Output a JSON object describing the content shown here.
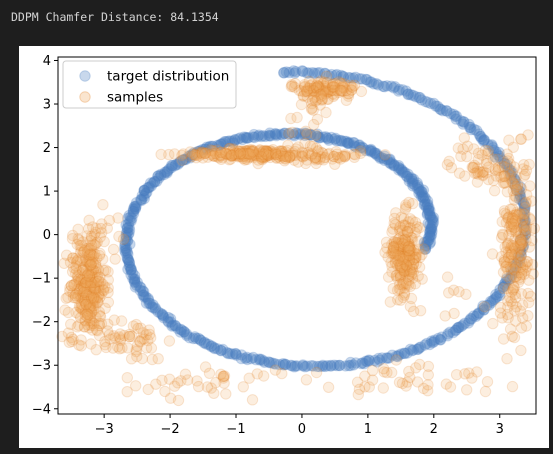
{
  "console": {
    "output_text": "DDPM Chamfer Distance: 84.1354"
  },
  "colors": {
    "background": "#1e1e1e",
    "console_text": "#d4d4d4",
    "panel": "#ffffff",
    "target": "#4a7fbf",
    "samples": "#f0a860",
    "samples_dense": "#e07a1a"
  },
  "chart_data": {
    "type": "scatter",
    "xlim": [
      -3.7,
      3.55
    ],
    "ylim": [
      -4.12,
      4.08
    ],
    "xticks": [
      -3,
      -2,
      -1,
      0,
      1,
      2,
      3
    ],
    "yticks": [
      -4,
      -3,
      -2,
      -1,
      0,
      1,
      2,
      3,
      4
    ],
    "xtick_labels": [
      "−3",
      "−2",
      "−1",
      "0",
      "1",
      "2",
      "3"
    ],
    "ytick_labels": [
      "−4",
      "−3",
      "−2",
      "−1",
      "0",
      "1",
      "2",
      "3",
      "4"
    ],
    "grid": false,
    "legend_position": "top-left",
    "series": [
      {
        "name": "target distribution",
        "shape": "spiral",
        "center": [
          0,
          0
        ],
        "r_outer": 3.75,
        "r_inner": 1.9,
        "theta_start": 95,
        "theta_end": -370,
        "n_points": 700,
        "alpha": 0.3
      },
      {
        "name": "samples",
        "shape": "spiral-clusters",
        "alpha": 0.2,
        "clusters": [
          {
            "cx": -3.25,
            "cy": -1.2,
            "sx": 0.14,
            "sy": 0.55,
            "n": 260
          },
          {
            "cx": -2.7,
            "cy": -2.4,
            "sx": 0.3,
            "sy": 0.25,
            "n": 60
          },
          {
            "cx": -0.8,
            "cy": 1.85,
            "sx": 0.5,
            "sy": 0.06,
            "n": 200
          },
          {
            "cx": 0.3,
            "cy": 1.8,
            "sx": 0.3,
            "sy": 0.08,
            "n": 60
          },
          {
            "cx": 1.55,
            "cy": -0.45,
            "sx": 0.12,
            "sy": 0.45,
            "n": 220
          },
          {
            "cx": 3.25,
            "cy": -0.2,
            "sx": 0.12,
            "sy": 1.0,
            "n": 220
          },
          {
            "cx": 2.75,
            "cy": 1.6,
            "sx": 0.25,
            "sy": 0.25,
            "n": 60
          },
          {
            "cx": 0.35,
            "cy": 3.35,
            "sx": 0.25,
            "sy": 0.1,
            "n": 100
          },
          {
            "cx": 0.25,
            "cy": 3.05,
            "sx": 0.06,
            "sy": 0.2,
            "n": 20
          },
          {
            "cx": -1.5,
            "cy": -3.4,
            "sx": 0.6,
            "sy": 0.2,
            "n": 40
          },
          {
            "cx": 1.8,
            "cy": -3.3,
            "sx": 0.6,
            "sy": 0.25,
            "n": 40
          },
          {
            "cx": -3.1,
            "cy": -0.2,
            "sx": 0.2,
            "sy": 0.3,
            "n": 40
          },
          {
            "cx": 0.0,
            "cy": 2.4,
            "sx": 0.15,
            "sy": 0.35,
            "n": 15
          },
          {
            "cx": 2.3,
            "cy": -1.3,
            "sx": 0.4,
            "sy": 0.3,
            "n": 12
          }
        ]
      }
    ]
  }
}
